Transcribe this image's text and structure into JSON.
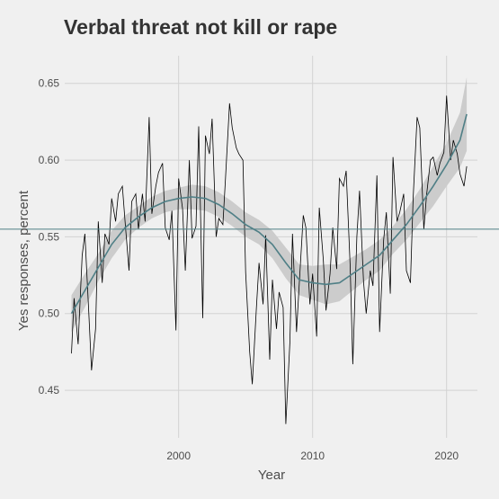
{
  "chart_data": {
    "type": "line",
    "title": "Verbal threat not kill or rape",
    "xlabel": "Year",
    "ylabel": "Yes responses, percent",
    "xlim": [
      1991.5,
      2022.3
    ],
    "ylim": [
      0.419,
      0.668
    ],
    "x_ticks": [
      2000,
      2010,
      2020
    ],
    "y_ticks": [
      0.45,
      0.5,
      0.55,
      0.6,
      0.65
    ],
    "y_tick_labels": [
      "0.45",
      "0.50",
      "0.55",
      "0.60",
      "0.65"
    ],
    "grid": true,
    "reference_line": {
      "y": 0.555
    },
    "colors": {
      "background": "#f0f0f0",
      "grid": "#d2d2d2",
      "series": "#000000",
      "smooth": "#4f7f86",
      "ribbon": "#cccccc",
      "reference": "#4f7f86"
    },
    "series": [
      {
        "x": [
          1992.0,
          1992.2,
          1992.5,
          1992.8,
          1993.0,
          1993.3,
          1993.5,
          1993.8,
          1994.0,
          1994.3,
          1994.5,
          1994.8,
          1995.0,
          1995.3,
          1995.5,
          1995.8,
          1996.0,
          1996.3,
          1996.5,
          1996.8,
          1997.0,
          1997.3,
          1997.5,
          1997.8,
          1998.0,
          1998.3,
          1998.5,
          1998.8,
          1999.0,
          1999.3,
          1999.5,
          1999.8,
          2000.0,
          2000.3,
          2000.5,
          2000.8,
          2001.0,
          2001.3,
          2001.5,
          2001.8,
          2002.0,
          2002.3,
          2002.5,
          2002.8,
          2003.0,
          2003.3,
          2003.5,
          2003.8,
          2004.0,
          2004.3,
          2004.5,
          2004.8,
          2005.0,
          2005.3,
          2005.5,
          2005.8,
          2006.0,
          2006.3,
          2006.5,
          2006.8,
          2007.0,
          2007.3,
          2007.5,
          2007.8,
          2008.0,
          2008.3,
          2008.5,
          2008.8,
          2009.0,
          2009.3,
          2009.5,
          2009.8,
          2010.0,
          2010.3,
          2010.5,
          2010.8,
          2011.0,
          2011.3,
          2011.5,
          2011.8,
          2012.0,
          2012.3,
          2012.5,
          2012.8,
          2013.0,
          2013.3,
          2013.5,
          2013.8,
          2014.0,
          2014.3,
          2014.5,
          2014.8,
          2015.0,
          2015.3,
          2015.5,
          2015.8,
          2016.0,
          2016.3,
          2016.5,
          2016.8,
          2017.0,
          2017.3,
          2017.5,
          2017.8,
          2018.0,
          2018.3,
          2018.5,
          2018.8,
          2019.0,
          2019.3,
          2019.5,
          2019.8,
          2020.0,
          2020.3,
          2020.5,
          2020.8,
          2021.0,
          2021.3,
          2021.5
        ],
        "y": [
          0.474,
          0.51,
          0.48,
          0.538,
          0.552,
          0.5,
          0.463,
          0.49,
          0.56,
          0.52,
          0.552,
          0.545,
          0.575,
          0.56,
          0.578,
          0.583,
          0.56,
          0.528,
          0.573,
          0.578,
          0.555,
          0.578,
          0.56,
          0.628,
          0.565,
          0.583,
          0.592,
          0.598,
          0.556,
          0.548,
          0.567,
          0.489,
          0.588,
          0.568,
          0.528,
          0.6,
          0.549,
          0.557,
          0.622,
          0.497,
          0.616,
          0.604,
          0.627,
          0.55,
          0.562,
          0.558,
          0.588,
          0.637,
          0.621,
          0.608,
          0.604,
          0.6,
          0.527,
          0.475,
          0.454,
          0.503,
          0.533,
          0.506,
          0.551,
          0.47,
          0.522,
          0.49,
          0.514,
          0.504,
          0.428,
          0.481,
          0.552,
          0.488,
          0.519,
          0.564,
          0.556,
          0.506,
          0.526,
          0.485,
          0.569,
          0.535,
          0.502,
          0.526,
          0.556,
          0.529,
          0.588,
          0.583,
          0.593,
          0.532,
          0.467,
          0.55,
          0.58,
          0.521,
          0.5,
          0.528,
          0.518,
          0.59,
          0.488,
          0.548,
          0.566,
          0.513,
          0.602,
          0.56,
          0.566,
          0.578,
          0.528,
          0.52,
          0.575,
          0.628,
          0.621,
          0.555,
          0.577,
          0.6,
          0.602,
          0.59,
          0.598,
          0.605,
          0.642,
          0.6,
          0.613,
          0.604,
          0.591,
          0.583,
          0.596
        ]
      }
    ],
    "smooth": {
      "x": [
        1992.0,
        1993.0,
        1994.0,
        1995.0,
        1996.0,
        1997.0,
        1998.0,
        1999.0,
        2000.0,
        2001.0,
        2002.0,
        2003.0,
        2004.0,
        2005.0,
        2006.0,
        2007.0,
        2008.0,
        2009.0,
        2010.0,
        2011.0,
        2012.0,
        2013.0,
        2014.0,
        2015.0,
        2016.0,
        2017.0,
        2018.0,
        2019.0,
        2020.0,
        2021.0,
        2021.5
      ],
      "y": [
        0.5,
        0.515,
        0.53,
        0.545,
        0.556,
        0.563,
        0.569,
        0.573,
        0.575,
        0.576,
        0.575,
        0.571,
        0.565,
        0.558,
        0.553,
        0.545,
        0.533,
        0.522,
        0.52,
        0.519,
        0.52,
        0.526,
        0.532,
        0.538,
        0.548,
        0.558,
        0.57,
        0.583,
        0.597,
        0.613,
        0.63
      ],
      "lower": [
        0.488,
        0.504,
        0.521,
        0.536,
        0.548,
        0.556,
        0.562,
        0.566,
        0.568,
        0.568,
        0.567,
        0.563,
        0.557,
        0.55,
        0.545,
        0.536,
        0.523,
        0.512,
        0.509,
        0.506,
        0.508,
        0.515,
        0.522,
        0.528,
        0.539,
        0.548,
        0.559,
        0.57,
        0.583,
        0.595,
        0.606
      ],
      "upper": [
        0.512,
        0.526,
        0.539,
        0.554,
        0.564,
        0.57,
        0.576,
        0.58,
        0.582,
        0.584,
        0.583,
        0.579,
        0.573,
        0.566,
        0.561,
        0.554,
        0.543,
        0.532,
        0.531,
        0.532,
        0.532,
        0.537,
        0.542,
        0.548,
        0.557,
        0.568,
        0.581,
        0.596,
        0.611,
        0.631,
        0.654
      ]
    }
  }
}
